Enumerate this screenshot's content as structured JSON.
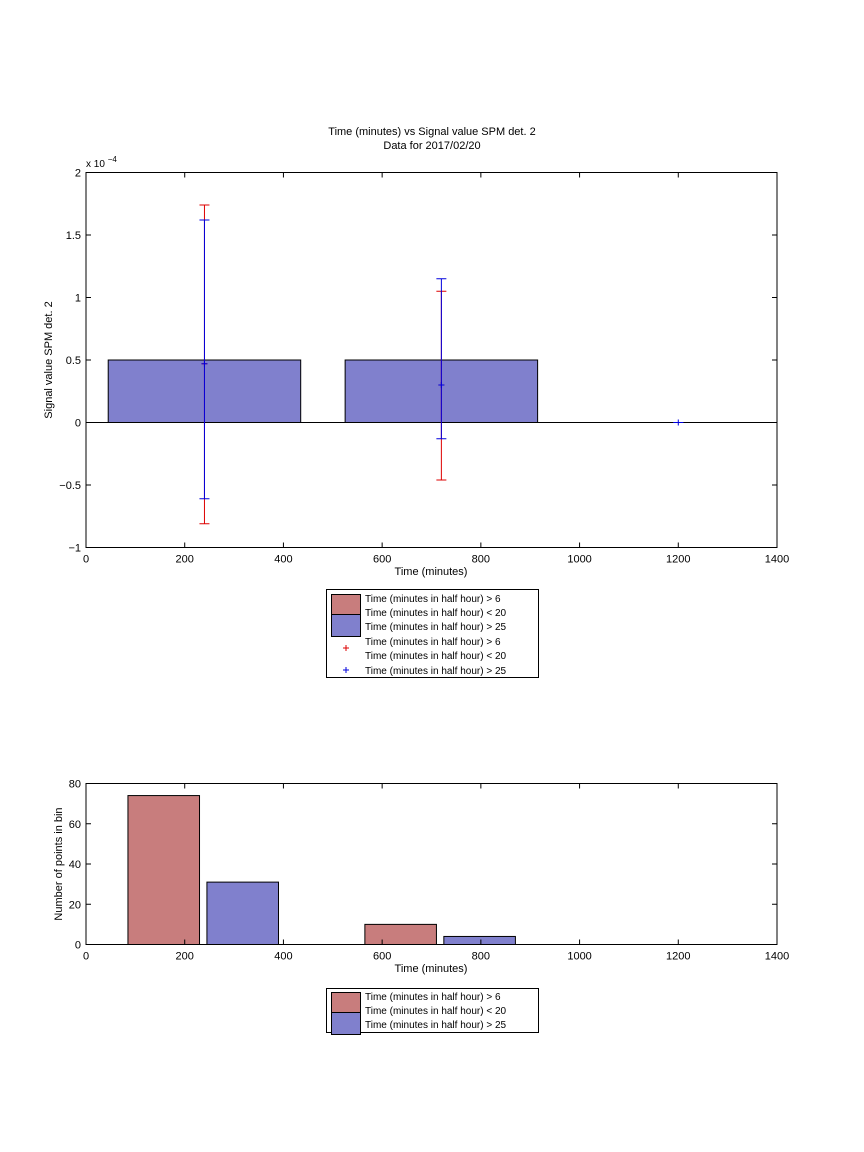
{
  "chart_data": [
    {
      "type": "bar",
      "title": "Time (minutes) vs Signal value SPM det. 2",
      "subtitle": "Data for 2017/02/20",
      "xlabel": "Time (minutes)",
      "ylabel": "Signal value SPM det. 2",
      "y_multiplier_label": "x 10",
      "y_multiplier_exponent": "−4",
      "xlim": [
        0,
        1400
      ],
      "ylim": [
        -1,
        2
      ],
      "xticks": [
        "0",
        "200",
        "400",
        "600",
        "800",
        "1000",
        "1200",
        "1400"
      ],
      "yticks": [
        "−1",
        "−0.5",
        "0",
        "0.5",
        "1",
        "1.5",
        "2"
      ],
      "grid": false,
      "bars": [
        {
          "x_start": 45,
          "x_end": 435,
          "value": 0.5,
          "series": 1
        },
        {
          "x_start": 525,
          "x_end": 915,
          "value": 0.5,
          "series": 1
        }
      ],
      "errorbars": [
        {
          "x": 240,
          "y": 0.47,
          "low": -0.81,
          "high": 1.74,
          "series": 0
        },
        {
          "x": 240,
          "y": 0.47,
          "low": -0.61,
          "high": 1.62,
          "series": 1
        },
        {
          "x": 720,
          "y": 0.3,
          "low": -0.46,
          "high": 1.05,
          "series": 0
        },
        {
          "x": 720,
          "y": 0.3,
          "low": -0.13,
          "high": 1.15,
          "series": 1
        },
        {
          "x": 1200,
          "y": 0.0,
          "low": 0.0,
          "high": 0.0,
          "series": 1
        }
      ],
      "legend": {
        "position": "below",
        "entries": [
          {
            "kind": "patch",
            "series": 0,
            "lines": [
              "Time (minutes in half hour) > 6",
              "Time (minutes in half hour) < 20"
            ]
          },
          {
            "kind": "patch",
            "series": 1,
            "lines": [
              "Time (minutes in half hour) > 25"
            ]
          },
          {
            "kind": "marker",
            "series": 0,
            "lines": [
              "Time (minutes in half hour) > 6",
              "Time (minutes in half hour) < 20"
            ]
          },
          {
            "kind": "marker",
            "series": 1,
            "lines": [
              "Time (minutes in half hour) > 25"
            ]
          }
        ]
      }
    },
    {
      "type": "bar",
      "xlabel": "Time (minutes)",
      "ylabel": "Number of points in bin",
      "xlim": [
        0,
        1400
      ],
      "ylim": [
        0,
        80
      ],
      "xticks": [
        "0",
        "200",
        "400",
        "600",
        "800",
        "1000",
        "1200",
        "1400"
      ],
      "yticks": [
        "0",
        "20",
        "40",
        "60",
        "80"
      ],
      "grid": false,
      "bars": [
        {
          "x_start": 85,
          "x_end": 230,
          "value": 74,
          "series": 0
        },
        {
          "x_start": 245,
          "x_end": 390,
          "value": 31,
          "series": 1
        },
        {
          "x_start": 565,
          "x_end": 710,
          "value": 10,
          "series": 0
        },
        {
          "x_start": 725,
          "x_end": 870,
          "value": 4,
          "series": 1
        }
      ],
      "legend": {
        "position": "below",
        "entries": [
          {
            "kind": "patch",
            "series": 0,
            "lines": [
              "Time (minutes in half hour) > 6",
              "Time (minutes in half hour) < 20"
            ]
          },
          {
            "kind": "patch",
            "series": 1,
            "lines": [
              "Time (minutes in half hour) > 25"
            ]
          }
        ]
      }
    }
  ],
  "colors": {
    "series_0_fill": "#c87d7d",
    "series_1_fill": "#8080cd",
    "series_0_marker": "#dd0000",
    "series_1_marker": "#0000dd"
  }
}
